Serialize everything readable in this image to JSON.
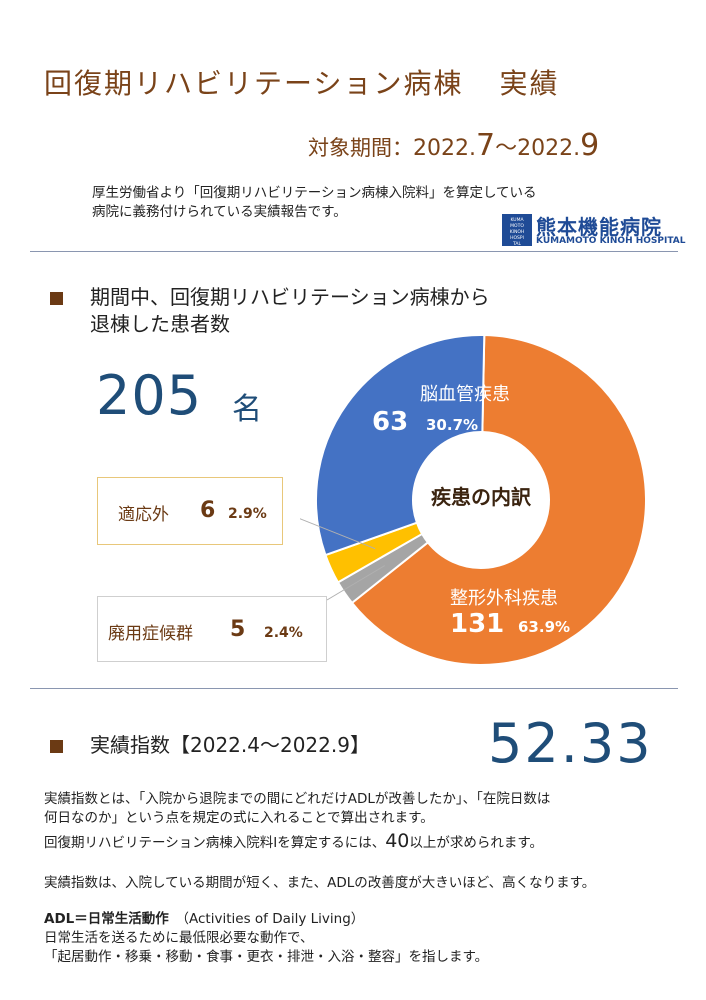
{
  "header": {
    "title_main": "回復期リハビリテーション病棟",
    "title_suffix": "実績",
    "period_label": "対象期間：",
    "period_start_year": "2022.",
    "period_start_month": "7",
    "period_tilde": "～",
    "period_end_year": "2022.",
    "period_end_month": "9",
    "description_line1": "厚生労働省より「回復期リハビリテーション病棟入院料」を算定している",
    "description_line2": "病院に義務付けられている実績報告です。",
    "logo": {
      "badge": "KUMAMOTO KINOH HOSPITAL",
      "name": "熊本機能病院",
      "sub": "KUMAMOTO KINOH HOSPITAL",
      "color": "#1f4b96"
    }
  },
  "section1": {
    "marker": "■",
    "title_line1": "期間中、回復期リハビリテーション病棟から",
    "title_line2": "退棟した患者数",
    "total": "205",
    "unit": "名"
  },
  "chart_data": {
    "type": "pie",
    "donut": true,
    "title": "疾患の内訳",
    "series": [
      {
        "label": "整形外科疾患",
        "count": "131",
        "percent": "63.9%",
        "value": 63.9,
        "color": "#ed7d31"
      },
      {
        "label": "廃用症候群",
        "count": "5",
        "percent": "2.4%",
        "value": 2.4,
        "color": "#a5a5a5"
      },
      {
        "label": "適応外",
        "count": "6",
        "percent": "2.9%",
        "value": 2.9,
        "color": "#ffc000"
      },
      {
        "label": "脳血管疾患",
        "count": "63",
        "percent": "30.7%",
        "value": 30.7,
        "color": "#4472c4"
      }
    ]
  },
  "section2": {
    "marker": "■",
    "title": "実績指数【2022.4～2022.9】",
    "value": "52.33",
    "p1_line1": "実績指数とは、「入院から退院までの間にどれだけADLが改善したか」、「在院日数は",
    "p1_line2": "何日なのか」という点を規定の式に入れることで算出されます。",
    "p2_prefix": "回復期リハビリテーション病棟入院料Ⅰを算定するには、",
    "p2_number": "40",
    "p2_suffix": "以上が求められます。",
    "p3": "実績指数は、入院している期間が短く、また、ADLの改善度が大きいほど、高くなります。",
    "adl_term": "ADL＝日常生活動作",
    "adl_english": "（Activities of Daily Living）",
    "adl_line2": "日常生活を送るために最低限必要な動作で、",
    "adl_line3": "「起居動作・移乗・移動・食事・更衣・排泄・入浴・整容」を指します。"
  }
}
